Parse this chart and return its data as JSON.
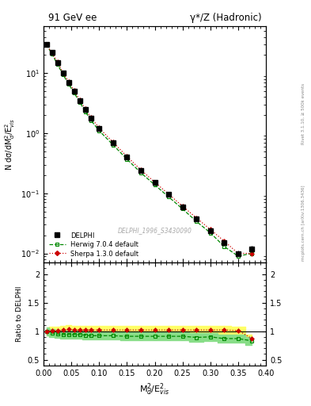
{
  "title_left": "91 GeV ee",
  "title_right": "γ*/Z (Hadronic)",
  "xlabel": "M$_d^2$/E$^2_{vis}$",
  "ylabel_main": "N dσ/dM$_d^2$/E$_{vis}^2$",
  "ylabel_ratio": "Ratio to DELPHI",
  "watermark": "DELPHI_1996_S3430090",
  "right_label_top": "Rivet 3.1.10, ≥ 500k events",
  "right_label_bot": "mcplots.cern.ch [arXiv:1306.3436]",
  "xlim": [
    0.0,
    0.4
  ],
  "ylim_main": [
    0.007,
    60
  ],
  "ylim_ratio": [
    0.4,
    2.2
  ],
  "delphi_x": [
    0.005,
    0.015,
    0.025,
    0.035,
    0.045,
    0.055,
    0.065,
    0.075,
    0.085,
    0.1,
    0.125,
    0.15,
    0.175,
    0.2,
    0.225,
    0.25,
    0.275,
    0.3,
    0.325,
    0.35,
    0.375
  ],
  "delphi_y": [
    30,
    22,
    15,
    10,
    7.0,
    5.0,
    3.5,
    2.5,
    1.8,
    1.2,
    0.7,
    0.4,
    0.24,
    0.15,
    0.095,
    0.06,
    0.038,
    0.024,
    0.015,
    0.01,
    0.012
  ],
  "delphi_yerr": [
    2,
    1.5,
    1.0,
    0.7,
    0.5,
    0.35,
    0.25,
    0.18,
    0.12,
    0.08,
    0.05,
    0.03,
    0.018,
    0.011,
    0.007,
    0.005,
    0.003,
    0.002,
    0.0015,
    0.001,
    0.0015
  ],
  "herwig_x": [
    0.005,
    0.015,
    0.025,
    0.035,
    0.045,
    0.055,
    0.065,
    0.075,
    0.085,
    0.1,
    0.125,
    0.15,
    0.175,
    0.2,
    0.225,
    0.25,
    0.275,
    0.3,
    0.325,
    0.35,
    0.375
  ],
  "herwig_y": [
    30,
    21,
    14,
    9.5,
    6.6,
    4.7,
    3.3,
    2.3,
    1.65,
    1.1,
    0.64,
    0.37,
    0.22,
    0.138,
    0.087,
    0.055,
    0.034,
    0.022,
    0.013,
    0.009,
    0.01
  ],
  "herwig_ratio": [
    1.0,
    0.97,
    0.95,
    0.94,
    0.94,
    0.94,
    0.94,
    0.93,
    0.92,
    0.92,
    0.92,
    0.91,
    0.91,
    0.91,
    0.91,
    0.91,
    0.89,
    0.9,
    0.87,
    0.87,
    0.83
  ],
  "herwig_band_lo": [
    0.93,
    0.9,
    0.88,
    0.87,
    0.87,
    0.87,
    0.87,
    0.86,
    0.85,
    0.85,
    0.85,
    0.84,
    0.84,
    0.84,
    0.84,
    0.84,
    0.82,
    0.83,
    0.8,
    0.8,
    0.76
  ],
  "herwig_band_hi": [
    1.07,
    1.04,
    1.02,
    1.01,
    1.01,
    1.01,
    1.01,
    1.0,
    0.99,
    0.99,
    0.99,
    0.98,
    0.98,
    0.98,
    0.98,
    0.98,
    0.96,
    0.97,
    0.94,
    0.94,
    0.9
  ],
  "sherpa_x": [
    0.005,
    0.015,
    0.025,
    0.035,
    0.045,
    0.055,
    0.065,
    0.075,
    0.085,
    0.1,
    0.125,
    0.15,
    0.175,
    0.2,
    0.225,
    0.25,
    0.275,
    0.3,
    0.325,
    0.35,
    0.375
  ],
  "sherpa_y": [
    30,
    22,
    15.2,
    10.2,
    7.2,
    5.1,
    3.6,
    2.55,
    1.84,
    1.22,
    0.71,
    0.41,
    0.245,
    0.153,
    0.097,
    0.061,
    0.039,
    0.025,
    0.016,
    0.01,
    0.01
  ],
  "sherpa_ratio": [
    1.0,
    1.01,
    1.01,
    1.02,
    1.03,
    1.02,
    1.02,
    1.02,
    1.02,
    1.02,
    1.02,
    1.02,
    1.02,
    1.02,
    1.02,
    1.02,
    1.02,
    1.02,
    1.02,
    1.01,
    0.87
  ],
  "sherpa_band_lo": [
    0.93,
    0.94,
    0.94,
    0.95,
    0.96,
    0.95,
    0.95,
    0.95,
    0.95,
    0.95,
    0.95,
    0.95,
    0.95,
    0.95,
    0.95,
    0.95,
    0.95,
    0.95,
    0.95,
    0.94,
    0.8
  ],
  "sherpa_band_hi": [
    1.07,
    1.08,
    1.08,
    1.09,
    1.1,
    1.09,
    1.09,
    1.09,
    1.09,
    1.09,
    1.09,
    1.09,
    1.09,
    1.09,
    1.09,
    1.09,
    1.09,
    1.09,
    1.09,
    1.08,
    0.94
  ],
  "delphi_color": "#000000",
  "herwig_color": "#008800",
  "sherpa_color": "#cc0000",
  "herwig_band_color": "#88dd88",
  "sherpa_band_color": "#ffff66",
  "bg_color": "#ffffff"
}
